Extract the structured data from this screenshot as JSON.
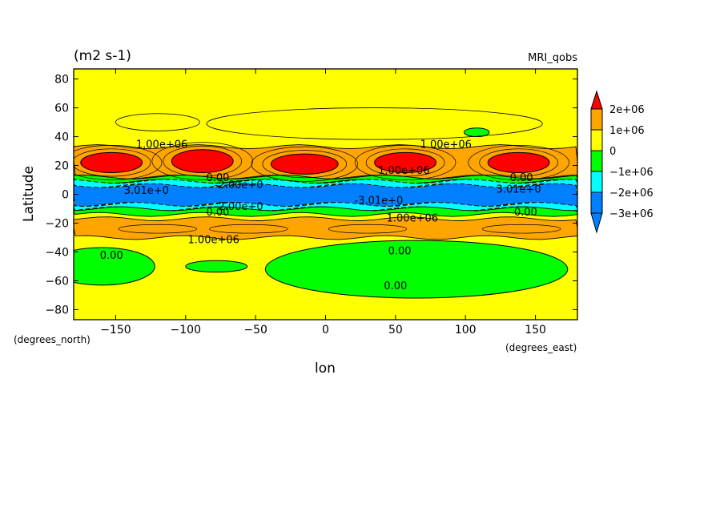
{
  "chart_data": {
    "type": "contour",
    "units": "(m2 s-1)",
    "model_label": "MRI_qobs",
    "xlabel": "lon",
    "ylabel": "Latitude",
    "x_unit_label": "(degrees_east)",
    "y_unit_label": "(degrees_north)",
    "xlim": [
      -180,
      180
    ],
    "ylim": [
      -87,
      87
    ],
    "x_ticks": [
      -150,
      -100,
      -50,
      0,
      50,
      100,
      150
    ],
    "y_ticks": [
      80,
      60,
      40,
      20,
      0,
      -20,
      -40,
      -60,
      -80
    ],
    "colorbar": {
      "levels": [
        {
          "label": "2e+06",
          "color": "#ff0000"
        },
        {
          "label": "1e+06",
          "color": "#ffa500"
        },
        {
          "label": "0",
          "color": "#ffff00"
        },
        {
          "label": "−1e+06",
          "color": "#00ff00"
        },
        {
          "label": "−2e+06",
          "color": "#00ffff"
        },
        {
          "label": "−3e+06",
          "color": "#0080ff"
        }
      ],
      "top_arrow_color": "#ff0000",
      "bottom_arrow_color": "#0080ff"
    },
    "bands": [
      {
        "lat_top": 33,
        "lat_bottom": 12,
        "color": "#ffa500"
      },
      {
        "lat_top": 12,
        "lat_bottom": 9,
        "color": "#00ff00"
      },
      {
        "lat_top": 9,
        "lat_bottom": 6,
        "color": "#00ffff"
      },
      {
        "lat_top": 6,
        "lat_bottom": -7,
        "color": "#0080ff"
      },
      {
        "lat_top": -7,
        "lat_bottom": -10,
        "color": "#00ffff"
      },
      {
        "lat_top": -10,
        "lat_bottom": -14,
        "color": "#00ff00"
      },
      {
        "lat_top": -17,
        "lat_bottom": -30,
        "color": "#ffa500"
      }
    ],
    "maxima": [
      {
        "lon": -153,
        "lat": 22,
        "rx": 22,
        "ry": 7
      },
      {
        "lon": -88,
        "lat": 23,
        "rx": 22,
        "ry": 8
      },
      {
        "lon": -15,
        "lat": 21,
        "rx": 24,
        "ry": 7
      },
      {
        "lon": 57,
        "lat": 22,
        "rx": 22,
        "ry": 7
      },
      {
        "lon": 138,
        "lat": 22,
        "rx": 22,
        "ry": 7
      }
    ],
    "negative_regions": [
      {
        "lon": -160,
        "lat": -50,
        "rx": 38,
        "ry": 13
      },
      {
        "lon": -78,
        "lat": -50,
        "rx": 22,
        "ry": 4
      },
      {
        "lon": 65,
        "lat": -52,
        "rx": 108,
        "ry": 20
      },
      {
        "lon": 108,
        "lat": 43,
        "rx": 9,
        "ry": 3
      }
    ],
    "contour_labels": [
      {
        "text": "1.00e+06",
        "lon": -117,
        "lat": 35
      },
      {
        "text": "1.00e+06",
        "lon": 86,
        "lat": 35
      },
      {
        "text": "1.00e+06",
        "lon": 56,
        "lat": 17
      },
      {
        "text": "0.00",
        "lon": -77,
        "lat": 12
      },
      {
        "text": "0.00",
        "lon": 140,
        "lat": 12
      },
      {
        "text": "-2.00e+0",
        "lon": -62,
        "lat": 7
      },
      {
        "text": "3.01e+0",
        "lon": -128,
        "lat": 3
      },
      {
        "text": "3.01e+0",
        "lon": 138,
        "lat": 4
      },
      {
        "text": "-3.01e+0",
        "lon": 38,
        "lat": -4
      },
      {
        "text": "-2.00e+0",
        "lon": -62,
        "lat": -8
      },
      {
        "text": "0.00",
        "lon": -77,
        "lat": -12
      },
      {
        "text": "0.00",
        "lon": 143,
        "lat": -12
      },
      {
        "text": "1.00e+06",
        "lon": 62,
        "lat": -16
      },
      {
        "text": "1.00e+06",
        "lon": -80,
        "lat": -31
      },
      {
        "text": "0.00",
        "lon": -153,
        "lat": -42
      },
      {
        "text": "0.00",
        "lon": 53,
        "lat": -39
      },
      {
        "text": "0.00",
        "lon": 50,
        "lat": -63
      }
    ]
  }
}
